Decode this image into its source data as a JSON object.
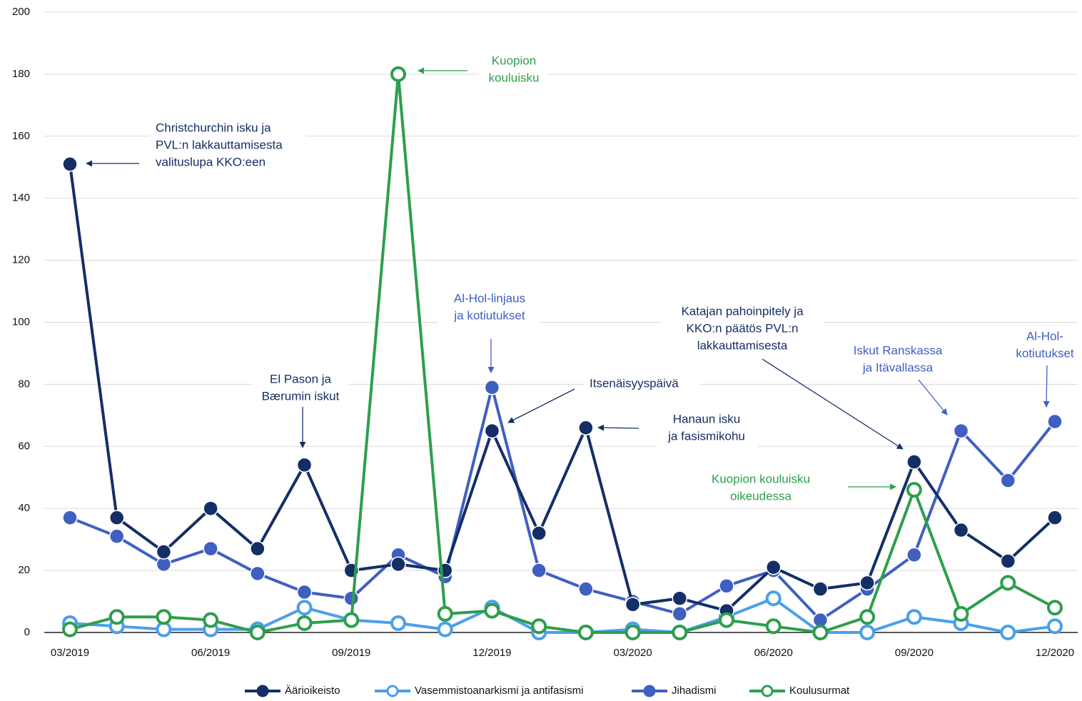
{
  "chart_data": {
    "type": "line",
    "categories": [
      "03/2019",
      null,
      null,
      "06/2019",
      null,
      null,
      "09/2019",
      null,
      null,
      "12/2019",
      null,
      null,
      "03/2020",
      null,
      null,
      "06/2020",
      null,
      null,
      "09/2020",
      null,
      null,
      "12/2020"
    ],
    "series": [
      {
        "name": "Vasemmistoanarkismi ja antifasismi",
        "color": "#4a9fea",
        "marker": "hollow",
        "values": [
          3,
          2,
          1,
          1,
          1,
          8,
          4,
          3,
          1,
          8,
          0,
          0,
          1,
          0,
          5,
          11,
          0,
          0,
          5,
          3,
          0,
          2
        ]
      },
      {
        "name": "Jihadismi",
        "color": "#3f5fc1",
        "marker": "filled",
        "values": [
          37,
          31,
          22,
          27,
          19,
          13,
          11,
          25,
          18,
          79,
          20,
          14,
          10,
          6,
          15,
          20,
          4,
          14,
          25,
          65,
          49,
          68
        ]
      },
      {
        "name": "Äärioikeisto",
        "color": "#142e66",
        "marker": "filled",
        "values": [
          151,
          37,
          26,
          40,
          27,
          54,
          20,
          22,
          20,
          65,
          32,
          66,
          9,
          11,
          7,
          21,
          14,
          16,
          55,
          33,
          23,
          37
        ]
      },
      {
        "name": "Koulusurmat",
        "color": "#2e9e4c",
        "marker": "hollow",
        "values": [
          1,
          5,
          5,
          4,
          0,
          3,
          4,
          180,
          6,
          7,
          2,
          0,
          0,
          0,
          4,
          2,
          0,
          5,
          46,
          6,
          16,
          8
        ]
      }
    ],
    "legend_order": [
      2,
      0,
      1,
      3
    ],
    "ylim": [
      0,
      200
    ],
    "yticks": [
      0,
      20,
      40,
      60,
      80,
      100,
      120,
      140,
      160,
      180,
      200
    ],
    "grid": true,
    "annotations": [
      {
        "lines": [
          "Christchurchin isku ja",
          "PVL:n lakkauttamisesta",
          "valituslupa KKO:een"
        ],
        "color": "#142e66"
      },
      {
        "lines": [
          "Kuopion",
          "kouluisku"
        ],
        "color": "#2e9e4c"
      },
      {
        "lines": [
          "Al-Hol-linjaus",
          "ja kotiutukset"
        ],
        "color": "#3f5fc1"
      },
      {
        "lines": [
          "El Pason ja",
          "Bærumin iskut"
        ],
        "color": "#142e66"
      },
      {
        "lines": [
          "Itsenäisyyspäivä"
        ],
        "color": "#142e66"
      },
      {
        "lines": [
          "Hanaun isku",
          "ja fasismikohu"
        ],
        "color": "#142e66"
      },
      {
        "lines": [
          "Katajan pahoinpitely ja",
          "KKO:n päätös PVL:n",
          "lakkauttamisesta"
        ],
        "color": "#142e66"
      },
      {
        "lines": [
          "Iskut Ranskassa",
          "ja Itävallassa"
        ],
        "color": "#3f5fc1"
      },
      {
        "lines": [
          "Al-Hol-",
          "kotiutukset"
        ],
        "color": "#3f5fc1"
      },
      {
        "lines": [
          "Kuopion kouluisku",
          "oikeudessa"
        ],
        "color": "#2e9e4c"
      }
    ]
  }
}
